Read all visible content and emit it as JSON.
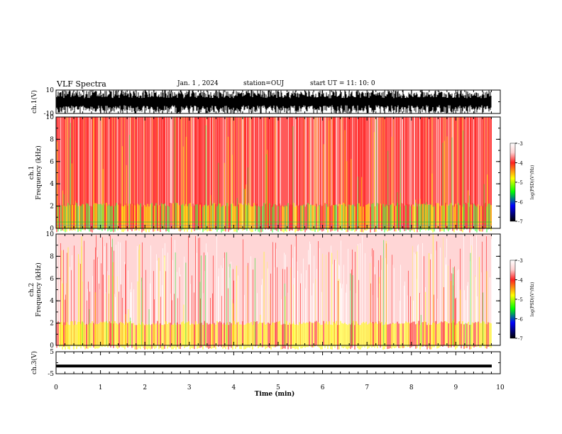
{
  "header": {
    "title": "VLF Spectra",
    "date": "Jan. 1 , 2024",
    "station": "station=OUJ",
    "start_ut": "start UT =  11: 10: 0"
  },
  "chart_data": [
    {
      "type": "line",
      "panel": "waveform-ch1",
      "ylabel": "ch.1(V)",
      "ylim": [
        -10,
        10
      ],
      "yticks": [
        "10",
        "-10"
      ],
      "xlim": [
        0,
        10
      ],
      "description_values": "dense broadband waveform saturating near ±10 V"
    },
    {
      "type": "heatmap",
      "panel": "spectrogram-ch1",
      "ylabel": "ch.1 Frequency (kHz)",
      "ylim": [
        0,
        10
      ],
      "yticks": [
        "0",
        "2",
        "4",
        "6",
        "8",
        "10"
      ],
      "xlim": [
        0,
        10
      ],
      "colorbar": {
        "label": "log(PSD)(V²/Hz)",
        "range": [
          -7,
          -3
        ],
        "ticks": [
          "-3",
          "-4",
          "-5",
          "-6",
          "-7"
        ]
      }
    },
    {
      "type": "heatmap",
      "panel": "spectrogram-ch2",
      "ylabel": "ch.2 Frequency (kHz)",
      "ylim": [
        0,
        10
      ],
      "yticks": [
        "0",
        "2",
        "4",
        "6",
        "8",
        "10"
      ],
      "xlim": [
        0,
        10
      ],
      "colorbar": {
        "label": "log(PSD)(V²/Hz)",
        "range": [
          -7,
          -3
        ],
        "ticks": [
          "-3",
          "-4",
          "-5",
          "-6",
          "-7"
        ]
      }
    },
    {
      "type": "line",
      "panel": "waveform-ch3",
      "ylabel": "ch.3(V)",
      "ylim": [
        -5,
        5
      ],
      "yticks": [
        "5",
        "-5"
      ],
      "xlim": [
        0,
        10
      ],
      "constant_value": -1.5
    }
  ],
  "xaxis": {
    "label": "Time (min)",
    "ticks": [
      "0",
      "1",
      "2",
      "3",
      "4",
      "5",
      "6",
      "7",
      "8",
      "9",
      "10"
    ]
  },
  "colors": {
    "white": "#ffffff",
    "red": "#ff2020",
    "yellow": "#ffff00",
    "green": "#00ff00",
    "blue": "#0000ff",
    "black": "#000000"
  }
}
